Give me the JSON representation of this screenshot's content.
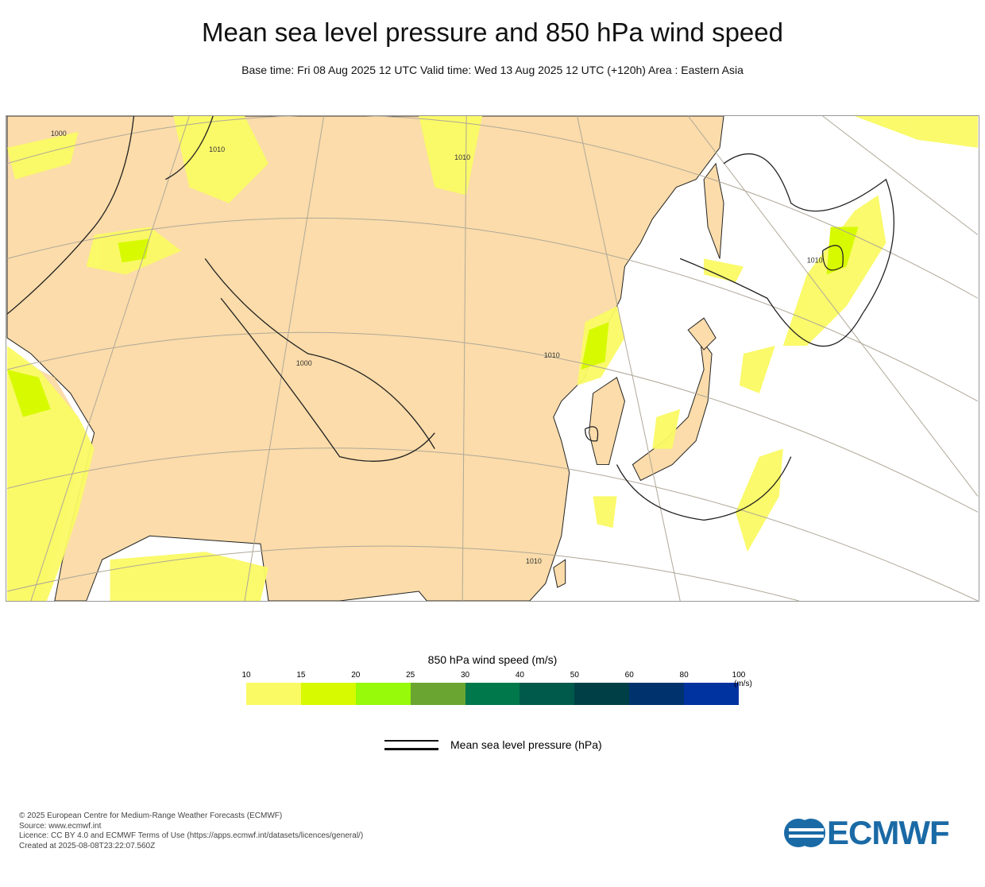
{
  "header": {
    "title": "Mean sea level pressure and 850 hPa wind speed",
    "subtitle": "Base time: Fri 08 Aug 2025 12 UTC Valid time: Wed 13 Aug 2025 12 UTC (+120h) Area : Eastern Asia"
  },
  "map": {
    "contour_labels": [
      "1000",
      "1010",
      "1010",
      "1000",
      "1010",
      "1010",
      "1010"
    ],
    "land_color": "#fbdcaa",
    "ocean_color": "#ffffff"
  },
  "colorbar": {
    "title": "850 hPa wind speed (m/s)",
    "ticks": [
      "10",
      "15",
      "20",
      "25",
      "30",
      "40",
      "50",
      "60",
      "80",
      "100"
    ],
    "unit": "(m/s)",
    "colors": [
      "#fafa64",
      "#d7fa00",
      "#96fa0a",
      "#6aa532",
      "#00784b",
      "#005a4b",
      "#003f46",
      "#00326e",
      "#0032a0"
    ]
  },
  "legend": {
    "label": "Mean sea level pressure (hPa)"
  },
  "footer": {
    "lines": [
      "© 2025 European Centre for Medium-Range Weather Forecasts (ECMWF)",
      "Source: www.ecmwf.int",
      "Licence: CC BY 4.0 and ECMWF Terms of Use (https://apps.ecmwf.int/datasets/licences/general/)",
      "Created at 2025-08-08T23:22:07.560Z"
    ],
    "logo_text": "ECMWF"
  }
}
